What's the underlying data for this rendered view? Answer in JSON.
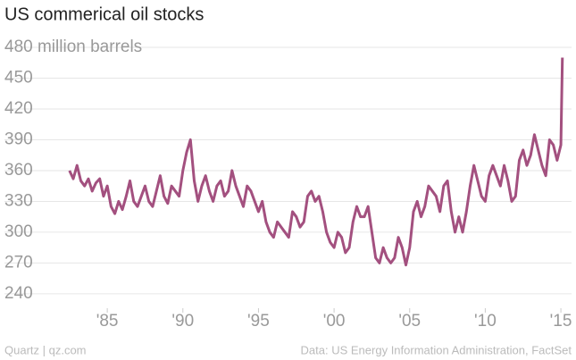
{
  "chart_data": {
    "type": "line",
    "title": "US commerical oil stocks",
    "source": "Data: US Energy Information Administration, FactSet",
    "credit": "Quartz | qz.com",
    "x": [
      1982.5,
      1982.75,
      1983,
      1983.25,
      1983.5,
      1983.75,
      1984,
      1984.25,
      1984.5,
      1984.75,
      1985,
      1985.25,
      1985.5,
      1985.75,
      1986,
      1986.25,
      1986.5,
      1986.75,
      1987,
      1987.25,
      1987.5,
      1987.75,
      1988,
      1988.25,
      1988.5,
      1988.75,
      1989,
      1989.25,
      1989.5,
      1989.75,
      1990,
      1990.25,
      1990.5,
      1990.75,
      1991,
      1991.25,
      1991.5,
      1991.75,
      1992,
      1992.25,
      1992.5,
      1992.75,
      1993,
      1993.25,
      1993.5,
      1993.75,
      1994,
      1994.25,
      1994.5,
      1994.75,
      1995,
      1995.25,
      1995.5,
      1995.75,
      1996,
      1996.25,
      1996.5,
      1996.75,
      1997,
      1997.25,
      1997.5,
      1997.75,
      1998,
      1998.25,
      1998.5,
      1998.75,
      1999,
      1999.25,
      1999.5,
      1999.75,
      2000,
      2000.25,
      2000.5,
      2000.75,
      2001,
      2001.25,
      2001.5,
      2001.75,
      2002,
      2002.25,
      2002.5,
      2002.75,
      2003,
      2003.25,
      2003.5,
      2003.75,
      2004,
      2004.25,
      2004.5,
      2004.75,
      2005,
      2005.25,
      2005.5,
      2005.75,
      2006,
      2006.25,
      2006.5,
      2006.75,
      2007,
      2007.25,
      2007.5,
      2007.75,
      2008,
      2008.25,
      2008.5,
      2008.75,
      2009,
      2009.25,
      2009.5,
      2009.75,
      2010,
      2010.25,
      2010.5,
      2010.75,
      2011,
      2011.25,
      2011.5,
      2011.75,
      2012,
      2012.25,
      2012.5,
      2012.75,
      2013,
      2013.25,
      2013.5,
      2013.75,
      2014,
      2014.25,
      2014.5,
      2014.75,
      2015,
      2015.1
    ],
    "series": [
      {
        "color": "#a3507f",
        "values": [
          360,
          352,
          365,
          350,
          345,
          352,
          340,
          348,
          352,
          335,
          345,
          325,
          318,
          330,
          322,
          335,
          350,
          330,
          325,
          335,
          345,
          330,
          325,
          340,
          355,
          335,
          328,
          345,
          340,
          335,
          360,
          378,
          390,
          350,
          330,
          345,
          355,
          340,
          330,
          345,
          350,
          335,
          340,
          360,
          345,
          335,
          325,
          345,
          340,
          330,
          320,
          330,
          310,
          300,
          295,
          310,
          305,
          300,
          295,
          320,
          315,
          305,
          310,
          335,
          340,
          330,
          335,
          320,
          300,
          290,
          285,
          300,
          295,
          280,
          285,
          310,
          325,
          315,
          315,
          325,
          300,
          275,
          270,
          285,
          275,
          270,
          275,
          295,
          285,
          268,
          285,
          320,
          330,
          315,
          325,
          345,
          340,
          335,
          320,
          345,
          350,
          320,
          300,
          315,
          300,
          320,
          345,
          365,
          350,
          335,
          330,
          355,
          365,
          355,
          345,
          365,
          350,
          330,
          335,
          370,
          380,
          365,
          375,
          395,
          380,
          365,
          355,
          390,
          385,
          370,
          385,
          470
        ]
      }
    ],
    "xlim": [
      1978.2,
      2016
    ],
    "xticks": [
      {
        "value": 1985,
        "label": "'85"
      },
      {
        "value": 1990,
        "label": "'90"
      },
      {
        "value": 1995,
        "label": "'95"
      },
      {
        "value": 2000,
        "label": "'00"
      },
      {
        "value": 2005,
        "label": "'05"
      },
      {
        "value": 2010,
        "label": "'10"
      },
      {
        "value": 2015,
        "label": "'15"
      }
    ],
    "ylim": [
      226,
      490
    ],
    "yticks": [
      240,
      270,
      300,
      330,
      360,
      390,
      420,
      450,
      {
        "value": 480,
        "label": "480 million barrels"
      }
    ],
    "grid": true
  }
}
